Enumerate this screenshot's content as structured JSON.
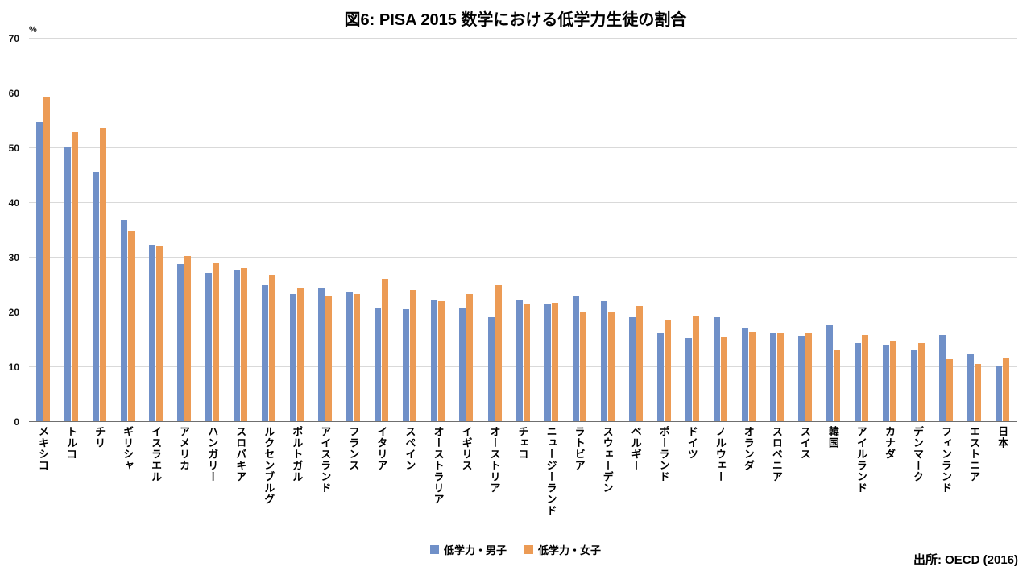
{
  "chart_data": {
    "type": "bar",
    "title": "図6: PISA 2015 数学における低学力生徒の割合",
    "ylabel": "%",
    "ylim": [
      0,
      70
    ],
    "ytick_interval": 10,
    "grid": true,
    "legend_position": "bottom",
    "source": "出所: OECD (2016)",
    "categories": [
      "メキシコ",
      "トルコ",
      "チリ",
      "ギリシャ",
      "イスラエル",
      "アメリカ",
      "ハンガリー",
      "スロバキア",
      "ルクセンブルグ",
      "ポルトガル",
      "アイスランド",
      "フランス",
      "イタリア",
      "スペイン",
      "オーストラリア",
      "イギリス",
      "オーストリア",
      "チェコ",
      "ニュージーランド",
      "ラトビア",
      "スウェーデン",
      "ベルギー",
      "ポーランド",
      "ドイツ",
      "ノルウェー",
      "オランダ",
      "スロベニア",
      "スイス",
      "韓国",
      "アイルランド",
      "カナダ",
      "デンマーク",
      "フィンランド",
      "エストニア",
      "日本"
    ],
    "series": [
      {
        "name": "低学力・男子",
        "color": "#7090C8",
        "values": [
          54.5,
          50.2,
          45.4,
          36.8,
          32.2,
          28.7,
          27.1,
          27.6,
          24.9,
          23.2,
          24.4,
          23.6,
          20.7,
          20.4,
          22.1,
          20.6,
          18.9,
          22.0,
          21.5,
          22.9,
          21.9,
          18.9,
          16.1,
          15.2,
          18.9,
          17.1,
          16.1,
          15.6,
          17.7,
          14.2,
          14.0,
          12.9,
          15.8,
          12.2,
          10.0
        ]
      },
      {
        "name": "低学力・女子",
        "color": "#EC9B55",
        "values": [
          59.2,
          52.8,
          53.5,
          34.7,
          32.0,
          30.1,
          28.8,
          27.9,
          26.8,
          24.2,
          22.8,
          23.3,
          25.9,
          24.0,
          21.9,
          23.2,
          24.8,
          21.3,
          21.6,
          20.0,
          19.9,
          21.1,
          18.5,
          19.3,
          15.3,
          16.3,
          16.1,
          16.1,
          12.9,
          15.8,
          14.7,
          14.2,
          11.3,
          10.5,
          11.4
        ]
      }
    ]
  }
}
